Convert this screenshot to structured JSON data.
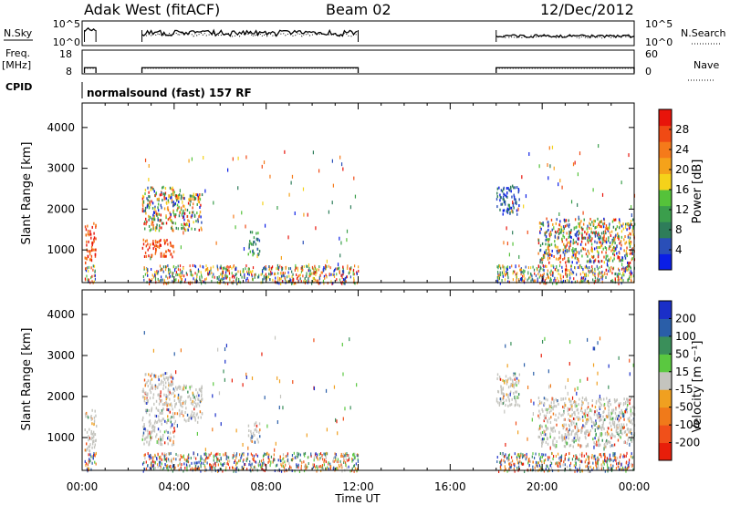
{
  "header": {
    "station": "Adak West (fitACF)",
    "beam": "Beam 02",
    "date": "12/Dec/2012"
  },
  "strip_labels": {
    "nsky": "N.Sky",
    "nsearch": "N.Search",
    "freq": "Freq.",
    "freq_unit": "[MHz]",
    "nave": "Nave",
    "cpid": "CPID",
    "cpid_text": "normalsound (fast) 157 RF",
    "noise_ticks_left": [
      "10^5",
      "10^0"
    ],
    "noise_ticks_right": [
      "10^5",
      "10^0"
    ],
    "freq_ticks": [
      "18",
      "8"
    ],
    "nave_ticks": [
      "60",
      "0"
    ]
  },
  "colors": {
    "power": [
      "#0a1ee6",
      "#2a4fb8",
      "#2e7d5a",
      "#3b9e4c",
      "#55c23a",
      "#f5d21a",
      "#f5a21a",
      "#f57a1a",
      "#f04a14",
      "#e8140a"
    ],
    "velocity": [
      "#1a2fc8",
      "#2a5ea8",
      "#3a8f5a",
      "#5ac840",
      "#c4c4be",
      "#f0a020",
      "#f07a1a",
      "#f0501a",
      "#e81e0a"
    ]
  },
  "chart_data": [
    {
      "type": "heatmap",
      "panel": "power",
      "ylabel": "Slant Range [km]",
      "yticks": [
        "1000",
        "2000",
        "3000",
        "4000"
      ],
      "ylim": [
        200,
        4600
      ],
      "xlim": [
        0,
        24
      ],
      "xticks": [
        "00:00",
        "04:00",
        "08:00",
        "12:00",
        "16:00",
        "20:00",
        "00:00"
      ],
      "xlabel": "Time UT",
      "colorbar": {
        "label": "Power [dB]",
        "ticks": [
          "4",
          "8",
          "12",
          "16",
          "20",
          "24",
          "28"
        ]
      },
      "regions": [
        {
          "t": [
            0.1,
            0.6
          ],
          "r": [
            700,
            1700
          ],
          "level": "high"
        },
        {
          "t": [
            2.6,
            4.0
          ],
          "r": [
            850,
            1300
          ],
          "level": "high"
        },
        {
          "t": [
            2.6,
            4.0
          ],
          "r": [
            1500,
            2600
          ],
          "level": "mixed"
        },
        {
          "t": [
            4.0,
            5.2
          ],
          "r": [
            1500,
            2400
          ],
          "level": "mixed"
        },
        {
          "t": [
            7.2,
            7.7
          ],
          "r": [
            900,
            1500
          ],
          "level": "medium"
        },
        {
          "t": [
            18.0,
            19.0
          ],
          "r": [
            1900,
            2600
          ],
          "level": "low"
        },
        {
          "t": [
            19.8,
            24.0
          ],
          "r": [
            700,
            1800
          ],
          "level": "mixed"
        }
      ]
    },
    {
      "type": "heatmap",
      "panel": "velocity",
      "ylabel": "Slant Range [km]",
      "yticks": [
        "1000",
        "2000",
        "3000",
        "4000"
      ],
      "ylim": [
        200,
        4600
      ],
      "xlim": [
        0,
        24
      ],
      "xticks": [
        "00:00",
        "04:00",
        "08:00",
        "12:00",
        "16:00",
        "20:00",
        "00:00"
      ],
      "xlabel": "Time UT",
      "colorbar": {
        "label": "Velocity [m s⁻¹]",
        "ticks": [
          "200",
          "100",
          "50",
          "15",
          "-15",
          "-50",
          "-100",
          "-200"
        ]
      },
      "regions": [
        {
          "t": [
            0.1,
            0.6
          ],
          "r": [
            700,
            1700
          ],
          "level": "low"
        },
        {
          "t": [
            2.6,
            4.0
          ],
          "r": [
            850,
            2600
          ],
          "level": "low"
        },
        {
          "t": [
            4.0,
            5.2
          ],
          "r": [
            1400,
            2300
          ],
          "level": "low"
        },
        {
          "t": [
            7.2,
            7.7
          ],
          "r": [
            900,
            1400
          ],
          "level": "low"
        },
        {
          "t": [
            18.0,
            19.0
          ],
          "r": [
            1800,
            2600
          ],
          "level": "low"
        },
        {
          "t": [
            19.8,
            24.0
          ],
          "r": [
            800,
            2000
          ],
          "level": "low"
        }
      ]
    }
  ]
}
